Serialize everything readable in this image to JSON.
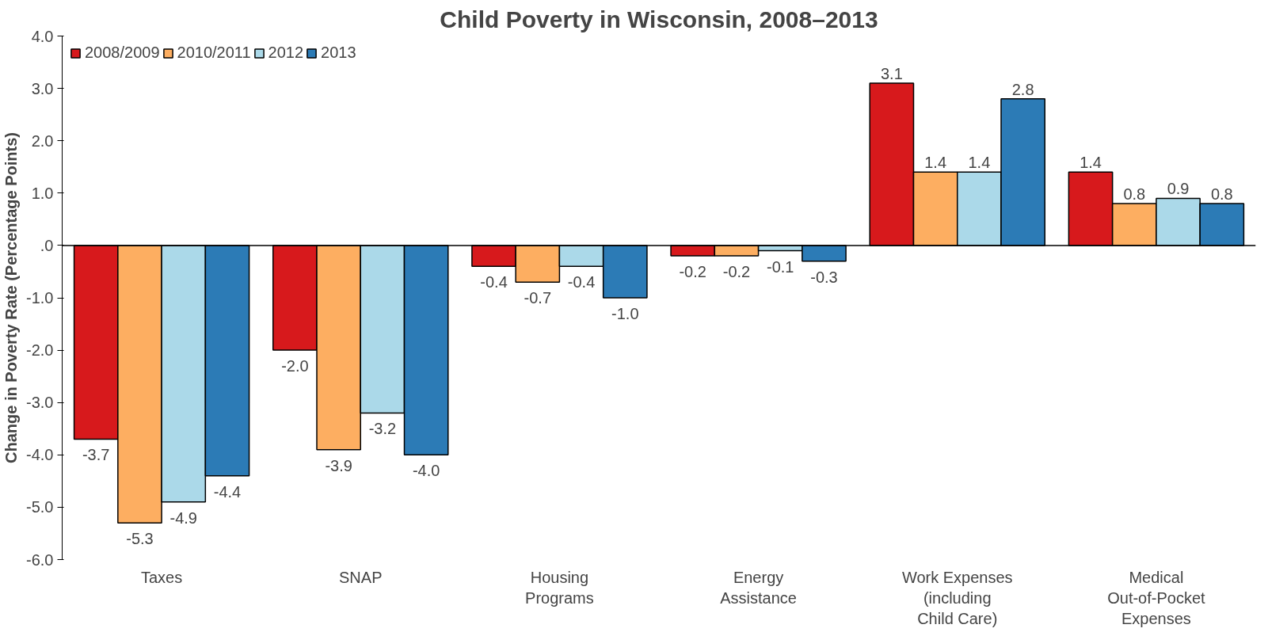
{
  "chart_data": {
    "type": "bar",
    "title": "Child Poverty in Wisconsin, 2008–2013",
    "ylabel": "Change in Poverty Rate (Percentage Points)",
    "categories": [
      "Taxes",
      "SNAP",
      "Housing\nPrograms",
      "Energy\nAssistance",
      "Work Expenses\n(including\nChild Care)",
      "Medical\nOut-of-Pocket\nExpenses"
    ],
    "series": [
      {
        "name": "2008/2009",
        "color": "#d7191c",
        "values": [
          -3.7,
          -2.0,
          -0.4,
          -0.2,
          3.1,
          1.4
        ]
      },
      {
        "name": "2010/2011",
        "color": "#fdae61",
        "values": [
          -5.3,
          -3.9,
          -0.7,
          -0.2,
          1.4,
          0.8
        ]
      },
      {
        "name": "2012",
        "color": "#abd9e9",
        "values": [
          -4.9,
          -3.2,
          -0.4,
          -0.1,
          1.4,
          0.9
        ]
      },
      {
        "name": "2013",
        "color": "#2c7bb6",
        "values": [
          -4.4,
          -4.0,
          -1.0,
          -0.3,
          2.8,
          0.8
        ]
      }
    ],
    "ylim": [
      -6.0,
      4.0
    ],
    "yticks": [
      {
        "value": -6.0,
        "label": "-6.0"
      },
      {
        "value": -5.0,
        "label": "-5.0"
      },
      {
        "value": -4.0,
        "label": "-4.0"
      },
      {
        "value": -3.0,
        "label": "-3.0"
      },
      {
        "value": -2.0,
        "label": "-2.0"
      },
      {
        "value": -1.0,
        "label": "-1.0"
      },
      {
        "value": 0,
        "label": ".0"
      },
      {
        "value": 1.0,
        "label": "1.0"
      },
      {
        "value": 2.0,
        "label": "2.0"
      },
      {
        "value": 3.0,
        "label": "3.0"
      },
      {
        "value": 4.0,
        "label": "4.0"
      }
    ],
    "value_labels": [
      [
        "-3.7",
        "-2.0",
        "-0.4",
        "-0.2",
        "3.1",
        "1.4"
      ],
      [
        "-5.3",
        "-3.9",
        "-0.7",
        "-0.2",
        "1.4",
        "0.8"
      ],
      [
        "-4.9",
        "-3.2",
        "-0.4",
        "-0.1",
        "1.4",
        "0.9"
      ],
      [
        "-4.4",
        "-4.0",
        "-1.0",
        "-0.3",
        "2.8",
        "0.8"
      ]
    ],
    "legend": "top left"
  }
}
